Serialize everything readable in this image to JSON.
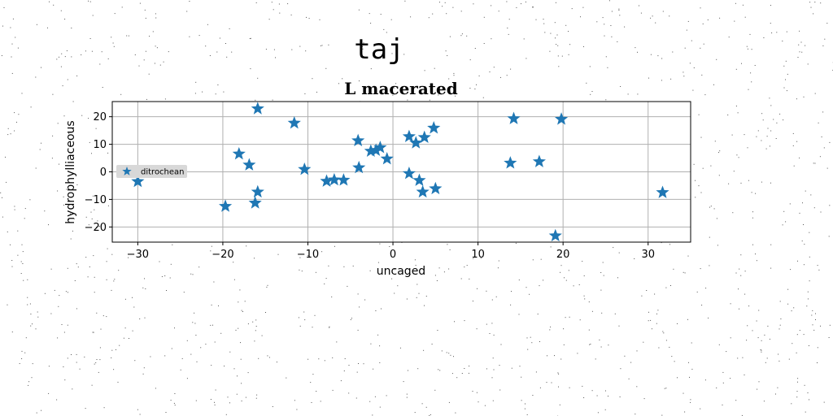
{
  "suptitle": "taj",
  "chart_data": {
    "type": "scatter",
    "title": "L macerated",
    "xlabel": "uncaged",
    "ylabel": "hydrophylliaceous",
    "xlim": [
      -33,
      35
    ],
    "ylim": [
      -25.5,
      25.5
    ],
    "xticks": [
      -30,
      -20,
      -10,
      0,
      10,
      20,
      30
    ],
    "yticks": [
      -20,
      -10,
      0,
      10,
      20
    ],
    "grid": true,
    "legend_position": "center-left",
    "series": [
      {
        "name": "ditrochean",
        "marker": "star",
        "color": "#1f77b4",
        "points": [
          [
            -30.0,
            -3.5
          ],
          [
            -19.7,
            -12.5
          ],
          [
            -18.1,
            6.5
          ],
          [
            -16.9,
            2.5
          ],
          [
            -16.2,
            -11.3
          ],
          [
            -15.9,
            22.9
          ],
          [
            -15.9,
            -7.3
          ],
          [
            -11.6,
            17.7
          ],
          [
            -10.4,
            0.9
          ],
          [
            -7.8,
            -3.4
          ],
          [
            -6.9,
            -2.9
          ],
          [
            -5.8,
            -3.0
          ],
          [
            -4.1,
            11.3
          ],
          [
            -4.0,
            1.5
          ],
          [
            -2.6,
            7.5
          ],
          [
            -2.0,
            7.8
          ],
          [
            -1.5,
            8.8
          ],
          [
            -0.7,
            4.7
          ],
          [
            1.9,
            12.8
          ],
          [
            1.9,
            -0.6
          ],
          [
            2.7,
            10.5
          ],
          [
            3.1,
            -3.1
          ],
          [
            3.5,
            -7.3
          ],
          [
            3.7,
            12.5
          ],
          [
            4.8,
            15.9
          ],
          [
            5.0,
            -6.1
          ],
          [
            13.8,
            3.2
          ],
          [
            14.2,
            19.3
          ],
          [
            17.2,
            3.7
          ],
          [
            19.1,
            -23.2
          ],
          [
            19.8,
            19.1
          ],
          [
            31.7,
            -7.5
          ]
        ]
      }
    ]
  }
}
